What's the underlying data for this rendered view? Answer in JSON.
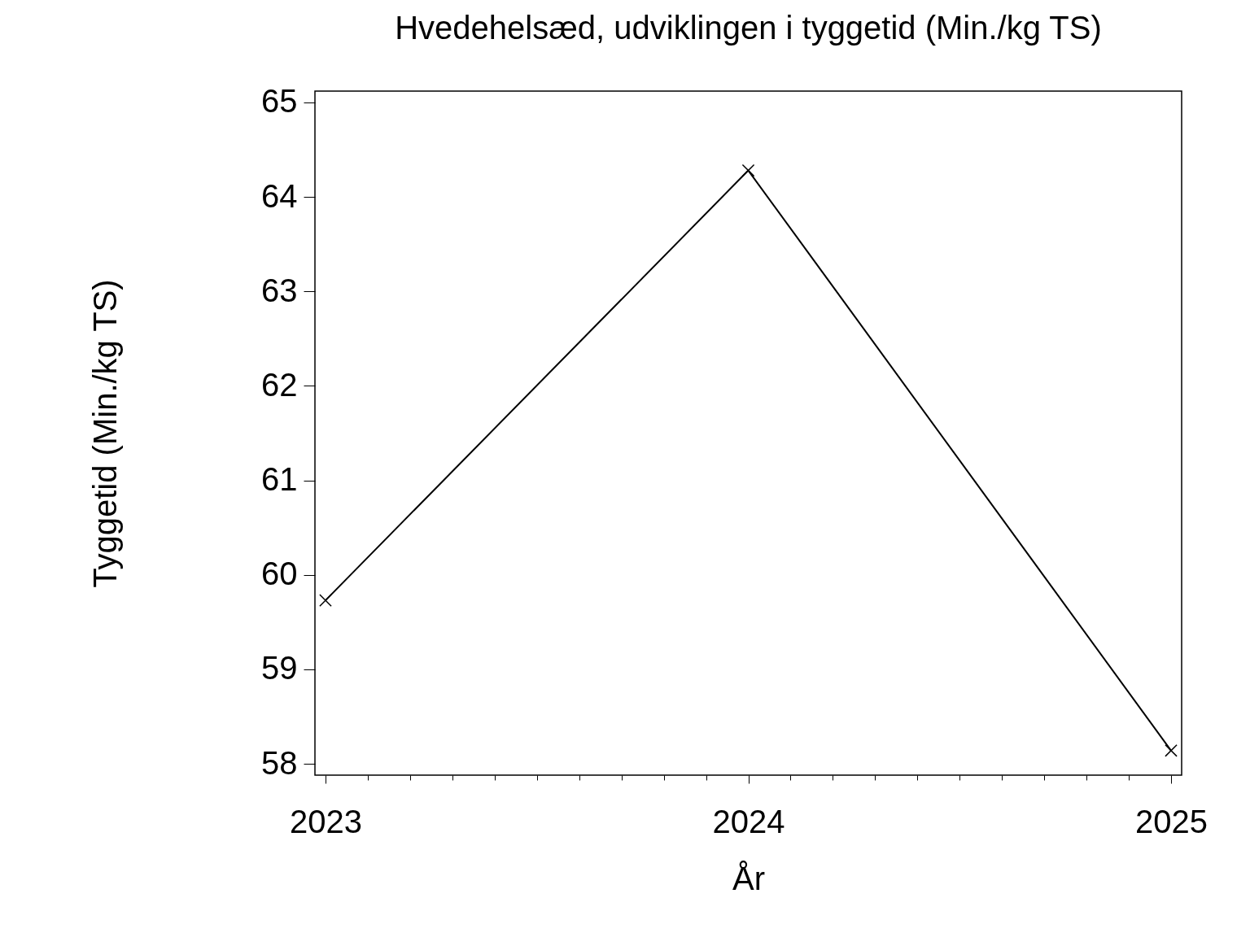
{
  "chart_data": {
    "type": "line",
    "title": "Hvedehelsæd, udviklingen i tyggetid (Min./kg TS)",
    "xlabel": "År",
    "ylabel": "Tyggetid (Min./kg TS)",
    "x": [
      2023,
      2024,
      2025
    ],
    "series": [
      {
        "color": "#000000",
        "values": [
          59.73,
          64.28,
          58.14
        ]
      }
    ],
    "xlim": [
      2022.975,
      2025.025
    ],
    "xticks": [
      2023,
      {
        "value": 2023.1,
        "label": null
      },
      {
        "value": 2023.2,
        "label": null
      },
      {
        "value": 2023.3,
        "label": null
      },
      {
        "value": 2023.4,
        "label": null
      },
      {
        "value": 2023.5,
        "label": null
      },
      {
        "value": 2023.6,
        "label": null
      },
      {
        "value": 2023.7,
        "label": null
      },
      {
        "value": 2023.8,
        "label": null
      },
      {
        "value": 2023.9,
        "label": null
      },
      2024,
      {
        "value": 2024.1,
        "label": null
      },
      {
        "value": 2024.2,
        "label": null
      },
      {
        "value": 2024.3,
        "label": null
      },
      {
        "value": 2024.4,
        "label": null
      },
      {
        "value": 2024.5,
        "label": null
      },
      {
        "value": 2024.6,
        "label": null
      },
      {
        "value": 2024.7,
        "label": null
      },
      {
        "value": 2024.8,
        "label": null
      },
      {
        "value": 2024.9,
        "label": null
      },
      2025
    ],
    "ylim": [
      57.88,
      65.12
    ],
    "yticks": [
      58,
      59,
      60,
      61,
      62,
      63,
      64,
      65
    ],
    "marker": "cross",
    "line_style": "solid"
  }
}
